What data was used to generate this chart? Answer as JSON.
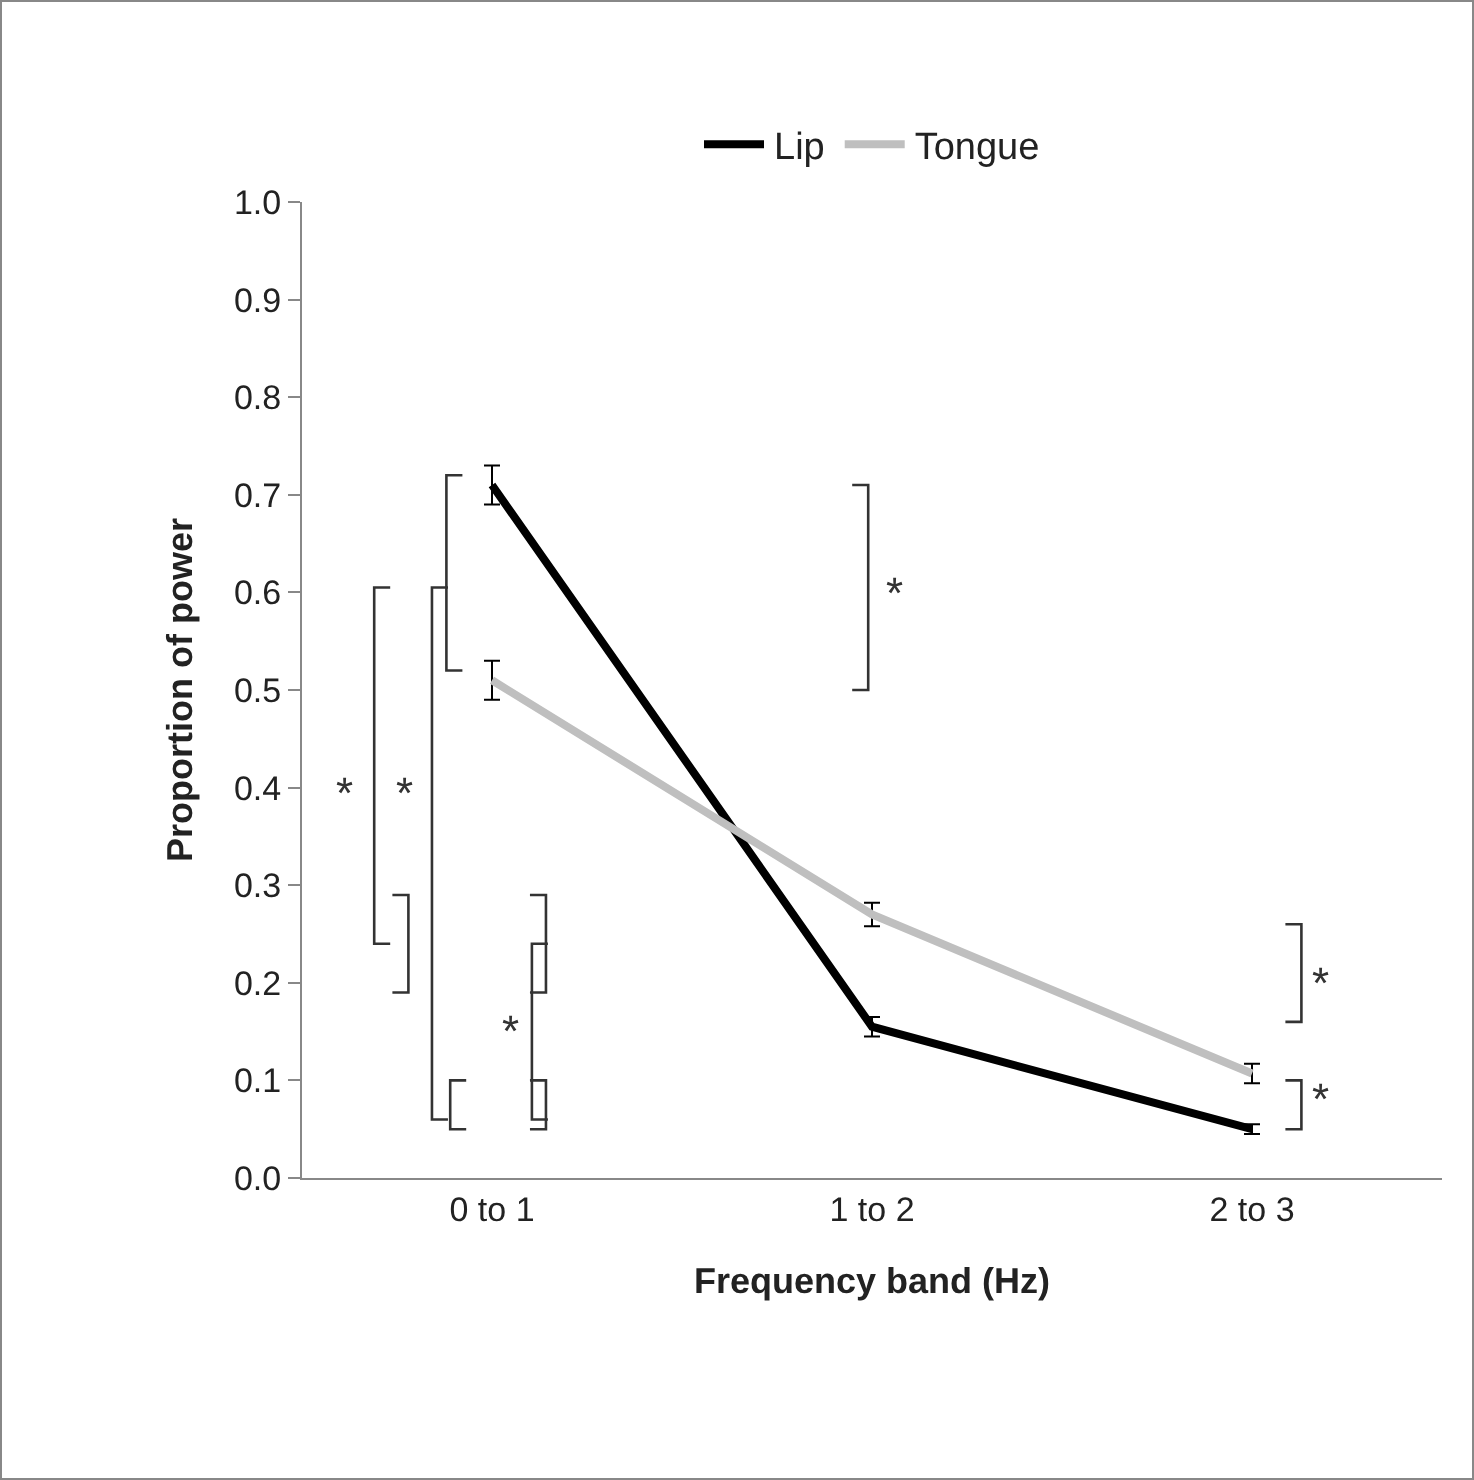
{
  "chart_data": {
    "type": "line",
    "xlabel": "Frequency band (Hz)",
    "ylabel": "Proportion of power",
    "categories": [
      "0 to 1",
      "1 to 2",
      "2 to 3"
    ],
    "series": [
      {
        "name": "Lip",
        "color": "#000000",
        "values": [
          0.71,
          0.155,
          0.05
        ],
        "errors": [
          0.02,
          0.01,
          0.005
        ]
      },
      {
        "name": "Tongue",
        "color": "#bfbfbf",
        "values": [
          0.51,
          0.27,
          0.107
        ],
        "errors": [
          0.02,
          0.012,
          0.01
        ]
      }
    ],
    "ylim": [
      0,
      1
    ],
    "yticks": [
      {
        "value": 0,
        "label": "0.0"
      },
      0.1,
      0.2,
      0.3,
      0.4,
      0.5,
      0.6,
      0.7,
      0.8,
      0.9,
      {
        "value": 1,
        "label": "1.0"
      }
    ],
    "grid": false,
    "legend": "top",
    "line_style": "solid",
    "annotations": [
      "*",
      "*",
      "*",
      "*",
      "*",
      "*"
    ]
  }
}
